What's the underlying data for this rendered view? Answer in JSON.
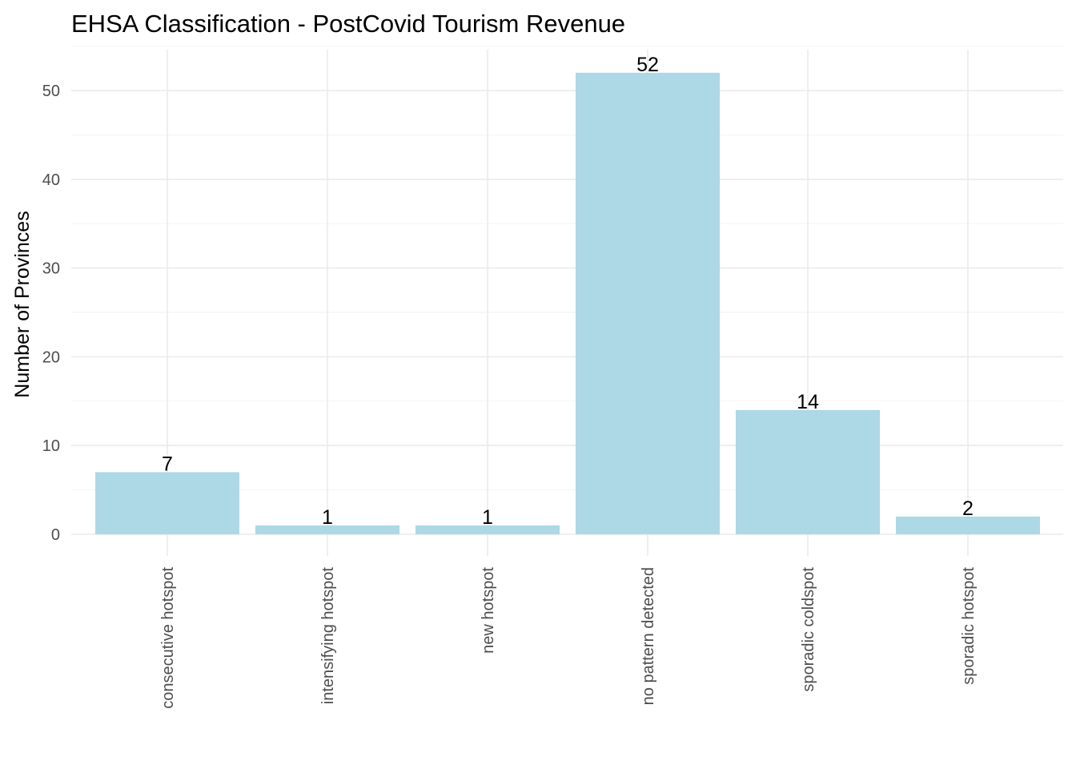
{
  "chart_data": {
    "type": "bar",
    "title": "EHSA Classification - PostCovid Tourism Revenue",
    "xlabel": "",
    "ylabel": "Number of Provinces",
    "categories": [
      "consecutive hotspot",
      "intensifying hotspot",
      "new hotspot",
      "no pattern detected",
      "sporadic coldspot",
      "sporadic hotspot"
    ],
    "values": [
      7,
      1,
      1,
      52,
      14,
      2
    ],
    "data_labels": [
      "7",
      "1",
      "1",
      "52",
      "14",
      "2"
    ],
    "ylim": [
      0,
      55
    ],
    "yticks": [
      0,
      10,
      20,
      30,
      40,
      50
    ],
    "ytick_labels": [
      "0",
      "10",
      "20",
      "30",
      "40",
      "50"
    ],
    "bar_color": "#add8e6",
    "grid": true,
    "legend": "none"
  }
}
